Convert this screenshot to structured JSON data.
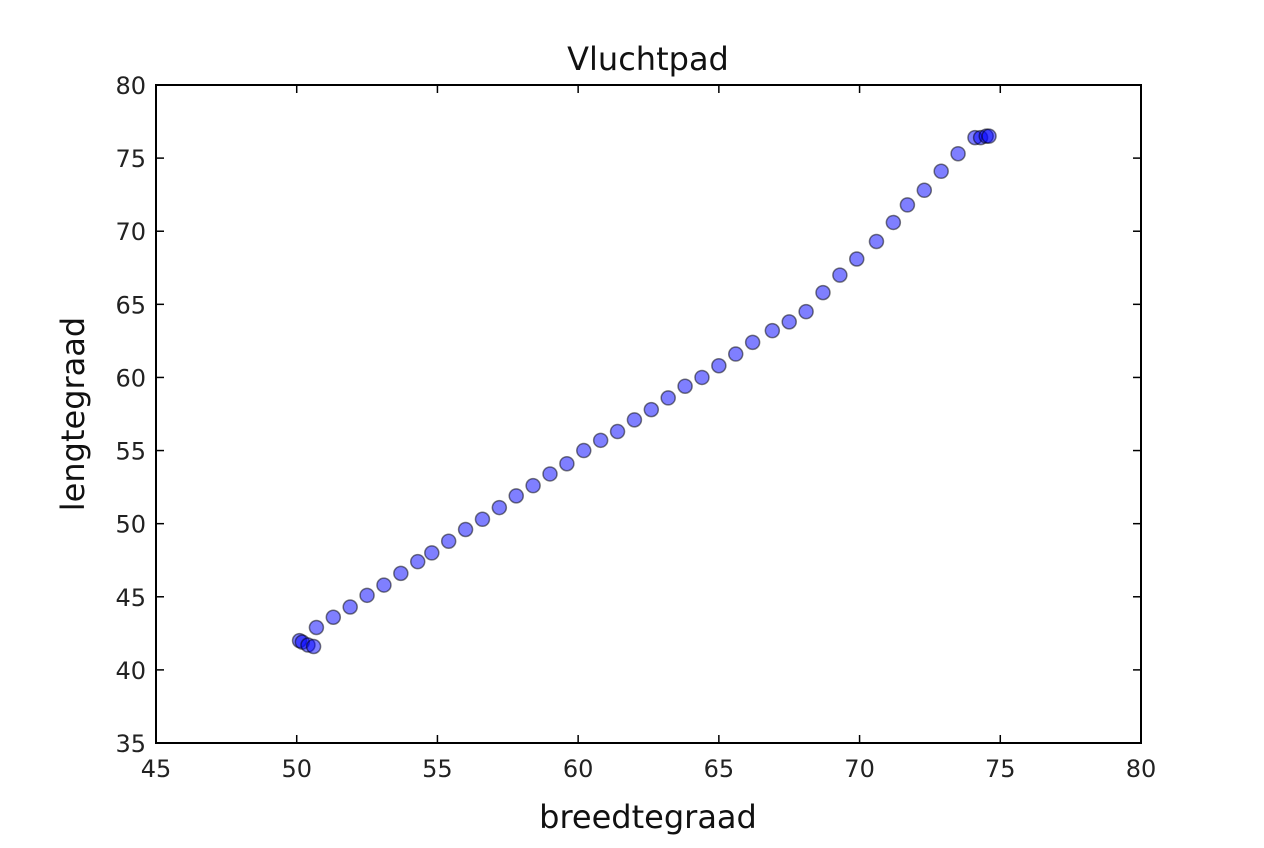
{
  "chart_data": {
    "type": "scatter",
    "title": "Vluchtpad",
    "xlabel": "breedtegraad",
    "ylabel": "lengtegraad",
    "xlim": [
      45,
      80
    ],
    "ylim": [
      35,
      80
    ],
    "xticks": [
      "45",
      "50",
      "55",
      "60",
      "65",
      "70",
      "75",
      "80"
    ],
    "yticks": [
      "35",
      "40",
      "45",
      "50",
      "55",
      "60",
      "65",
      "70",
      "75",
      "80"
    ],
    "grid": false,
    "marker_color": "#0000ff",
    "marker_alpha": 0.5,
    "points": [
      [
        50.1,
        42.0
      ],
      [
        50.2,
        41.9
      ],
      [
        50.4,
        41.7
      ],
      [
        50.6,
        41.6
      ],
      [
        50.7,
        42.9
      ],
      [
        51.3,
        43.6
      ],
      [
        51.9,
        44.3
      ],
      [
        52.5,
        45.1
      ],
      [
        53.1,
        45.8
      ],
      [
        53.7,
        46.6
      ],
      [
        54.3,
        47.4
      ],
      [
        54.8,
        48.0
      ],
      [
        55.4,
        48.8
      ],
      [
        56.0,
        49.6
      ],
      [
        56.6,
        50.3
      ],
      [
        57.2,
        51.1
      ],
      [
        57.8,
        51.9
      ],
      [
        58.4,
        52.6
      ],
      [
        59.0,
        53.4
      ],
      [
        59.6,
        54.1
      ],
      [
        60.2,
        55.0
      ],
      [
        60.8,
        55.7
      ],
      [
        61.4,
        56.3
      ],
      [
        62.0,
        57.1
      ],
      [
        62.6,
        57.8
      ],
      [
        63.2,
        58.6
      ],
      [
        63.8,
        59.4
      ],
      [
        64.4,
        60.0
      ],
      [
        65.0,
        60.8
      ],
      [
        65.6,
        61.6
      ],
      [
        66.2,
        62.4
      ],
      [
        66.9,
        63.2
      ],
      [
        67.5,
        63.8
      ],
      [
        68.1,
        64.5
      ],
      [
        68.7,
        65.8
      ],
      [
        69.3,
        67.0
      ],
      [
        69.9,
        68.1
      ],
      [
        70.6,
        69.3
      ],
      [
        71.2,
        70.6
      ],
      [
        71.7,
        71.8
      ],
      [
        72.3,
        72.8
      ],
      [
        72.9,
        74.1
      ],
      [
        73.5,
        75.3
      ],
      [
        74.1,
        76.4
      ],
      [
        74.3,
        76.4
      ],
      [
        74.5,
        76.5
      ],
      [
        74.6,
        76.5
      ]
    ]
  }
}
